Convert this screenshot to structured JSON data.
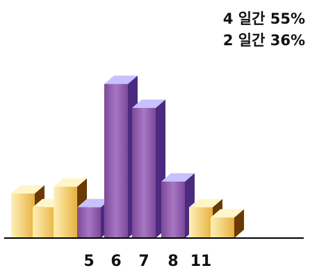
{
  "chart_data": {
    "type": "bar",
    "title": "",
    "xlabel": "",
    "ylabel": "",
    "ylim": [
      0,
      100
    ],
    "grid": false,
    "annotations": [
      "4 일간 55%",
      "2 일간 36%"
    ],
    "bars": [
      {
        "label": "",
        "value": 26,
        "style": "yellow"
      },
      {
        "label": "",
        "value": 18,
        "style": "yellow"
      },
      {
        "label": "",
        "value": 30,
        "style": "yellow"
      },
      {
        "label": "5",
        "value": 18,
        "style": "purple"
      },
      {
        "label": "6",
        "value": 90,
        "style": "purple"
      },
      {
        "label": "7",
        "value": 76,
        "style": "purple"
      },
      {
        "label": "8",
        "value": 33,
        "style": "purple"
      },
      {
        "label": "11",
        "value": 18,
        "style": "yellow"
      },
      {
        "label": "",
        "value": 12,
        "style": "yellow"
      }
    ]
  },
  "colors": {
    "purple_front_light": "#a777c4",
    "purple_front_dark": "#7b4898",
    "purple_top": "#c7c1ff",
    "purple_side": "#4b2a82",
    "yellow_front_light": "#fff1b8",
    "yellow_front_dark": "#e7b13d",
    "yellow_top": "#fff6c8",
    "yellow_side": "#6a3a06",
    "axis": "#000000",
    "text": "#111111"
  }
}
